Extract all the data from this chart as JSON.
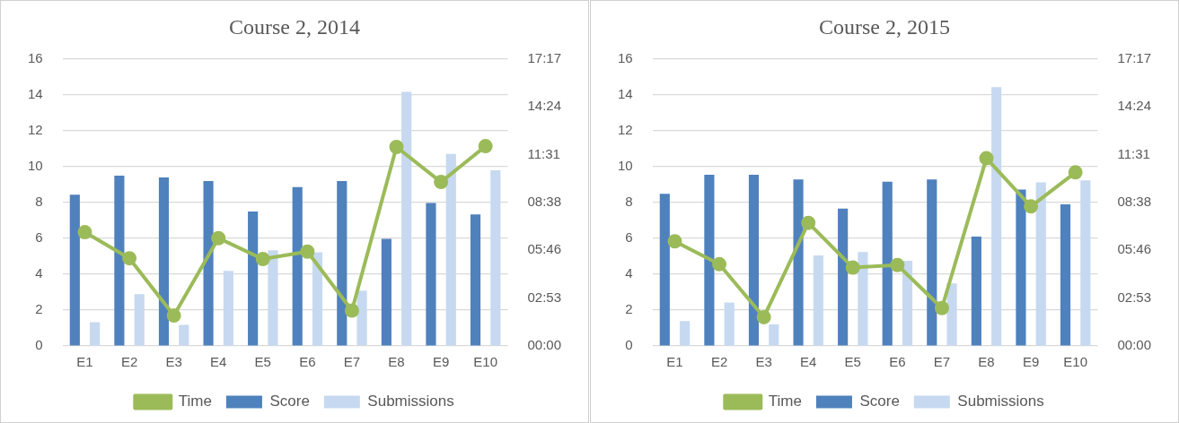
{
  "chart_data": [
    {
      "type": "bar",
      "title": "Course 2, 2014",
      "categories": [
        "E1",
        "E2",
        "E3",
        "E4",
        "E5",
        "E6",
        "E7",
        "E8",
        "E9",
        "E10"
      ],
      "series": [
        {
          "name": "Score",
          "color": "#4f81bd",
          "values": [
            8.43,
            9.49,
            9.4,
            9.19,
            7.5,
            8.86,
            9.19,
            5.97,
            7.97,
            7.33
          ]
        },
        {
          "name": "Submissions",
          "color": "#c6d9f0",
          "values": [
            1.32,
            2.89,
            1.17,
            4.18,
            5.33,
            5.22,
            3.08,
            14.17,
            10.71,
            9.8
          ]
        },
        {
          "name": "Time",
          "type": "line",
          "axis": "y2",
          "color": "#9bbb59",
          "values": [
            6.85,
            5.28,
            1.83,
            6.49,
            5.23,
            5.68,
            2.13,
            11.98,
            9.87,
            12.03
          ]
        }
      ],
      "ylim": [
        0,
        16
      ],
      "yticks": [
        0,
        2,
        4,
        6,
        8,
        10,
        12,
        14,
        16
      ],
      "y2lim": [
        0,
        17.28
      ],
      "y2ticks": [
        {
          "value": 0,
          "label": "00:00"
        },
        {
          "value": 2.88,
          "label": "02:53"
        },
        {
          "value": 5.76,
          "label": "05:46"
        },
        {
          "value": 8.64,
          "label": "08:38"
        },
        {
          "value": 11.52,
          "label": "11:31"
        },
        {
          "value": 14.4,
          "label": "14:24"
        },
        {
          "value": 17.28,
          "label": "17:17"
        }
      ],
      "grid": "y",
      "legend": "bottom",
      "marker": "circle",
      "line_style": "solid"
    },
    {
      "type": "bar",
      "title": "Course 2, 2015",
      "categories": [
        "E1",
        "E2",
        "E3",
        "E4",
        "E5",
        "E6",
        "E7",
        "E8",
        "E9",
        "E10"
      ],
      "series": [
        {
          "name": "Score",
          "color": "#4f81bd",
          "values": [
            8.48,
            9.54,
            9.54,
            9.28,
            7.66,
            9.16,
            9.28,
            6.09,
            8.72,
            7.89
          ]
        },
        {
          "name": "Submissions",
          "color": "#c6d9f0",
          "values": [
            1.39,
            2.42,
            1.2,
            5.05,
            5.24,
            4.75,
            3.48,
            14.43,
            9.12,
            9.23
          ]
        },
        {
          "name": "Time",
          "type": "line",
          "axis": "y2",
          "color": "#9bbb59",
          "values": [
            6.3,
            4.92,
            1.73,
            7.41,
            4.72,
            4.87,
            2.28,
            11.3,
            8.4,
            10.45
          ]
        }
      ],
      "ylim": [
        0,
        16
      ],
      "yticks": [
        0,
        2,
        4,
        6,
        8,
        10,
        12,
        14,
        16
      ],
      "y2lim": [
        0,
        17.28
      ],
      "y2ticks": [
        {
          "value": 0,
          "label": "00:00"
        },
        {
          "value": 2.88,
          "label": "02:53"
        },
        {
          "value": 5.76,
          "label": "05:46"
        },
        {
          "value": 8.64,
          "label": "08:38"
        },
        {
          "value": 11.52,
          "label": "11:31"
        },
        {
          "value": 14.4,
          "label": "14:24"
        },
        {
          "value": 17.28,
          "label": "17:17"
        }
      ],
      "grid": "y",
      "legend": "bottom",
      "marker": "circle",
      "line_style": "solid"
    }
  ]
}
